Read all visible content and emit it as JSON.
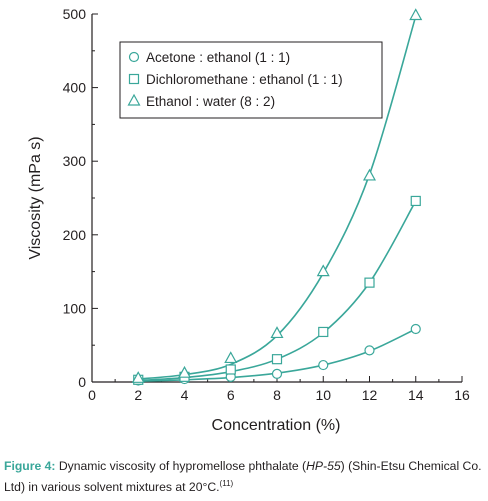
{
  "chart_data": {
    "type": "line",
    "xlabel": "Concentration (%)",
    "ylabel": "Viscosity (mPa s)",
    "xlim": [
      0,
      16
    ],
    "ylim": [
      0,
      500
    ],
    "xticks": [
      "0",
      "2",
      "4",
      "6",
      "8",
      "10",
      "12",
      "14",
      "16"
    ],
    "yticks": [
      "0",
      "100",
      "200",
      "300",
      "400",
      "500"
    ],
    "grid": false,
    "legend_position": "top-left",
    "line_color": "#3aa79a",
    "series": [
      {
        "name": "Acetone : ethanol (1 : 1)",
        "marker": "circle",
        "x": [
          2,
          4,
          6,
          8,
          10,
          12,
          14
        ],
        "values": [
          2,
          4,
          7,
          11,
          23,
          43,
          72
        ],
        "curve": [
          [
            2,
            1
          ],
          [
            4,
            3
          ],
          [
            6,
            6
          ],
          [
            8,
            12
          ],
          [
            10,
            23
          ],
          [
            12,
            42
          ],
          [
            14,
            72
          ]
        ]
      },
      {
        "name": "Dichloromethane : ethanol (1 : 1)",
        "marker": "square",
        "x": [
          2,
          4,
          6,
          8,
          10,
          12,
          14
        ],
        "values": [
          3,
          7,
          17,
          31,
          68,
          135,
          246
        ],
        "curve": [
          [
            2,
            2
          ],
          [
            4,
            6
          ],
          [
            6,
            14
          ],
          [
            8,
            31
          ],
          [
            10,
            67
          ],
          [
            12,
            135
          ],
          [
            14,
            246
          ]
        ]
      },
      {
        "name": "Ethanol : water (8 : 2)",
        "marker": "triangle",
        "x": [
          2,
          4,
          6,
          8,
          10,
          12,
          14
        ],
        "values": [
          5,
          12,
          32,
          66,
          150,
          280,
          498
        ],
        "curve": [
          [
            2,
            4
          ],
          [
            4,
            10
          ],
          [
            6,
            24
          ],
          [
            8,
            63
          ],
          [
            10,
            148
          ],
          [
            12,
            282
          ],
          [
            14,
            497
          ]
        ]
      }
    ]
  },
  "caption": {
    "label": "Figure 4:",
    "text_before_italic": " Dynamic viscosity of hypromellose phthalate (",
    "italic": "HP-55",
    "text_after_italic": ") (Shin-Etsu Chemical Co. Ltd) in various solvent mixtures at 20°C.",
    "reference": "(11)"
  }
}
